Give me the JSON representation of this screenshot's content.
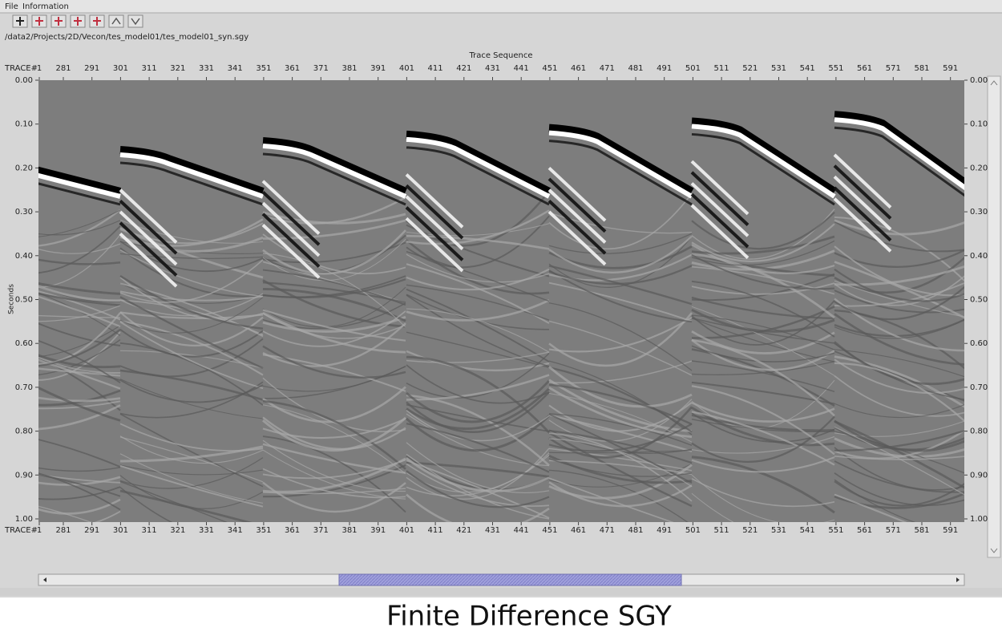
{
  "menu": [
    "File",
    "Information"
  ],
  "path": "/data2/Projects/2D/Vecon/tes_model01/tes_model01_syn.sgy",
  "axis_title": "Trace Sequence",
  "trace_label": "TRACE#",
  "trace_ticks": [
    "1",
    "281",
    "291",
    "301",
    "311",
    "321",
    "331",
    "341",
    "351",
    "361",
    "371",
    "381",
    "391",
    "401",
    "411",
    "421",
    "431",
    "441",
    "451",
    "461",
    "471",
    "481",
    "491",
    "501",
    "511",
    "521",
    "531",
    "541",
    "551",
    "561",
    "571",
    "581",
    "591"
  ],
  "y_label": "Seconds",
  "time_ticks": [
    "0.00",
    "0.10",
    "0.20",
    "0.30",
    "0.40",
    "0.50",
    "0.60",
    "0.70",
    "0.80",
    "0.90",
    "1.00"
  ],
  "caption": "Finite Difference SGY"
}
